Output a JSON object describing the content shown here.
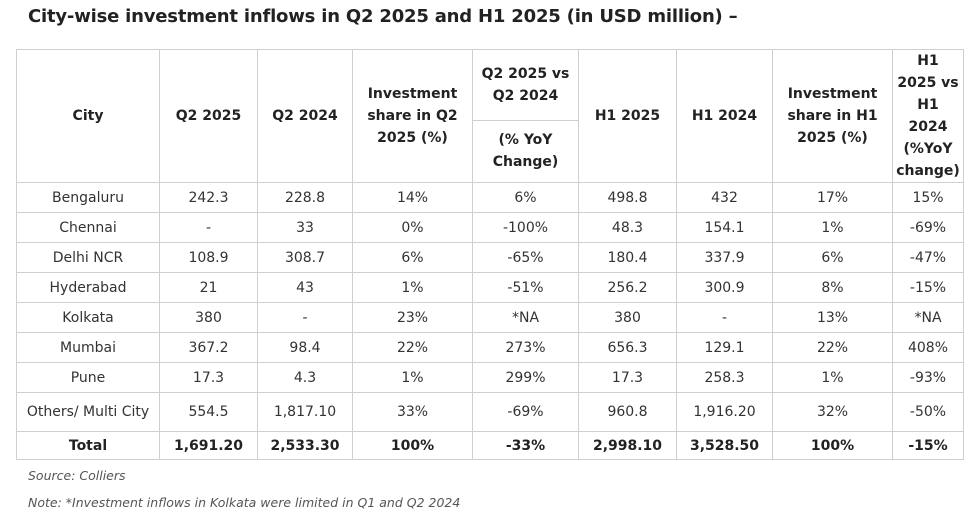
{
  "title": "City-wise investment inflows in Q2 2025 and H1 2025 (in USD million) –",
  "headers": {
    "city": "City",
    "q2_2025": "Q2 2025",
    "q2_2024": "Q2 2024",
    "share_q2": "Investment share in Q2 2025 (%)",
    "q2_vs_q2_top": "Q2 2025 vs Q2 2024",
    "q2_vs_q2_bottom": "(% YoY Change)",
    "h1_2025": "H1 2025",
    "h1_2024": "H1 2024",
    "share_h1": "Investment share in H1 2025 (%)",
    "h1_vs_h1": "H1 2025 vs H1 2024 (%YoY change)"
  },
  "rows": [
    {
      "city": "Bengaluru",
      "q2_2025": "242.3",
      "q2_2024": "228.8",
      "share_q2": "14%",
      "yoy_q2": "6%",
      "h1_2025": "498.8",
      "h1_2024": "432",
      "share_h1": "17%",
      "yoy_h1": "15%"
    },
    {
      "city": "Chennai",
      "q2_2025": "-",
      "q2_2024": "33",
      "share_q2": "0%",
      "yoy_q2": "-100%",
      "h1_2025": "48.3",
      "h1_2024": "154.1",
      "share_h1": "1%",
      "yoy_h1": "-69%"
    },
    {
      "city": "Delhi NCR",
      "q2_2025": "108.9",
      "q2_2024": "308.7",
      "share_q2": "6%",
      "yoy_q2": "-65%",
      "h1_2025": "180.4",
      "h1_2024": "337.9",
      "share_h1": "6%",
      "yoy_h1": "-47%"
    },
    {
      "city": "Hyderabad",
      "q2_2025": "21",
      "q2_2024": "43",
      "share_q2": "1%",
      "yoy_q2": "-51%",
      "h1_2025": "256.2",
      "h1_2024": "300.9",
      "share_h1": "8%",
      "yoy_h1": "-15%"
    },
    {
      "city": "Kolkata",
      "q2_2025": "380",
      "q2_2024": "-",
      "share_q2": "23%",
      "yoy_q2": "*NA",
      "h1_2025": "380",
      "h1_2024": "-",
      "share_h1": "13%",
      "yoy_h1": "*NA"
    },
    {
      "city": "Mumbai",
      "q2_2025": "367.2",
      "q2_2024": "98.4",
      "share_q2": "22%",
      "yoy_q2": "273%",
      "h1_2025": "656.3",
      "h1_2024": "129.1",
      "share_h1": "22%",
      "yoy_h1": "408%"
    },
    {
      "city": "Pune",
      "q2_2025": "17.3",
      "q2_2024": "4.3",
      "share_q2": "1%",
      "yoy_q2": "299%",
      "h1_2025": "17.3",
      "h1_2024": "258.3",
      "share_h1": "1%",
      "yoy_h1": "-93%"
    },
    {
      "city": "Others/ Multi City",
      "q2_2025": "554.5",
      "q2_2024": "1,817.10",
      "share_q2": "33%",
      "yoy_q2": "-69%",
      "h1_2025": "960.8",
      "h1_2024": "1,916.20",
      "share_h1": "32%",
      "yoy_h1": "-50%"
    }
  ],
  "total": {
    "city": "Total",
    "q2_2025": "1,691.20",
    "q2_2024": "2,533.30",
    "share_q2": "100%",
    "yoy_q2": "-33%",
    "h1_2025": "2,998.10",
    "h1_2024": "3,528.50",
    "share_h1": "100%",
    "yoy_h1": "-15%"
  },
  "source": "Source: Colliers",
  "note": "Note: *Investment inflows in Kolkata were limited in Q1 and Q2 2024"
}
